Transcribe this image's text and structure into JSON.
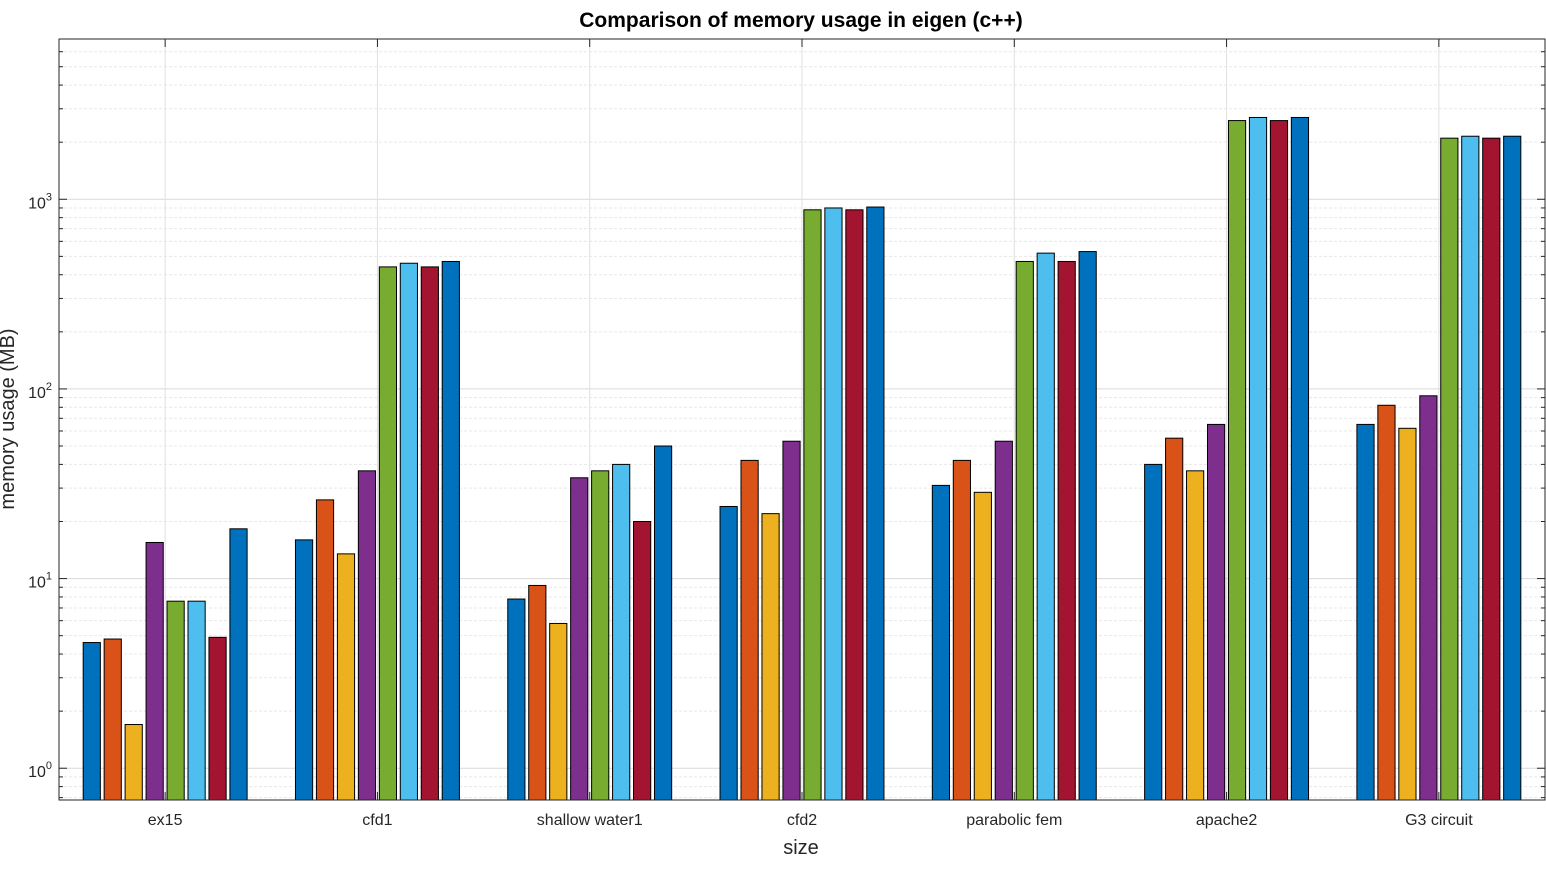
{
  "chart_data": {
    "type": "bar",
    "title": "Comparison of memory usage in eigen (c++)",
    "xlabel": "size",
    "ylabel": "memory usage (MB)",
    "yscale": "log",
    "ylim": [
      0.68,
      7000
    ],
    "yticks": [
      {
        "base": "10",
        "exp": "0",
        "value": 1
      },
      {
        "base": "10",
        "exp": "1",
        "value": 10
      },
      {
        "base": "10",
        "exp": "2",
        "value": 100
      },
      {
        "base": "10",
        "exp": "3",
        "value": 1000
      }
    ],
    "grid": true,
    "minor_grid": true,
    "legend": "none",
    "categories": [
      "ex15",
      "cfd1",
      "shallow water1",
      "cfd2",
      "parabolic fem",
      "apache2",
      "G3 circuit"
    ],
    "series": [
      {
        "color": "#0072BD",
        "values": [
          4.6,
          16,
          7.8,
          24,
          31,
          40,
          65
        ]
      },
      {
        "color": "#D95319",
        "values": [
          4.8,
          26,
          9.2,
          42,
          42,
          55,
          82
        ]
      },
      {
        "color": "#EDB120",
        "values": [
          1.7,
          13.5,
          5.8,
          22,
          28.5,
          37,
          62
        ]
      },
      {
        "color": "#7E2F8E",
        "values": [
          15.5,
          37,
          34,
          53,
          53,
          65,
          92
        ]
      },
      {
        "color": "#77AC30",
        "values": [
          7.6,
          440,
          37,
          880,
          470,
          2600,
          2100
        ]
      },
      {
        "color": "#4DBEEE",
        "values": [
          7.6,
          460,
          40,
          900,
          520,
          2700,
          2150
        ]
      },
      {
        "color": "#A2142F",
        "values": [
          4.9,
          440,
          20,
          880,
          470,
          2600,
          2100
        ]
      },
      {
        "color": "#0072BD",
        "values": [
          18.3,
          470,
          50,
          910,
          530,
          2700,
          2150
        ]
      }
    ]
  }
}
